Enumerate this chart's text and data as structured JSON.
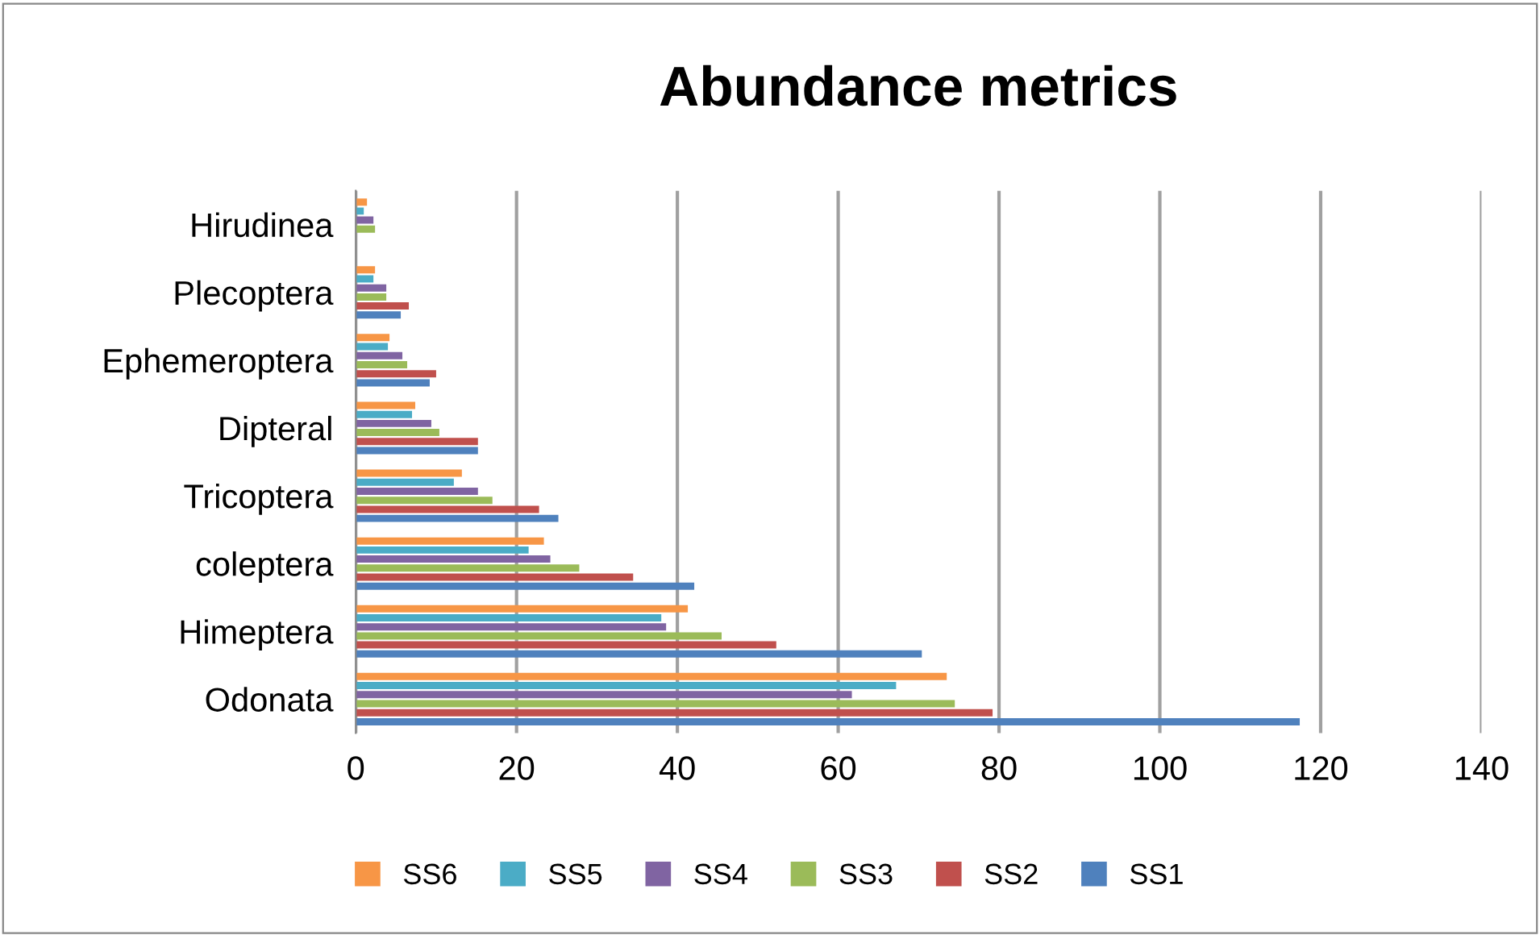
{
  "chart_data": {
    "type": "bar",
    "orientation": "horizontal",
    "title": "Abundance metrics",
    "categories": [
      "Hirudinea",
      "Plecoptera",
      "Ephemeroptera",
      "Dipteral",
      "Tricoptera",
      "coleptera",
      "Himeptera",
      "Odonata"
    ],
    "series": [
      {
        "name": "SS1",
        "color": "#4f81bd",
        "values": [
          0,
          5.6,
          9.2,
          15.2,
          25.2,
          42.1,
          70.4,
          117.4
        ]
      },
      {
        "name": "SS2",
        "color": "#c0504d",
        "values": [
          0,
          6.6,
          10,
          15.2,
          22.8,
          34.5,
          52.3,
          79.2
        ]
      },
      {
        "name": "SS3",
        "color": "#9bbb59",
        "values": [
          2.4,
          3.8,
          6.4,
          10.4,
          17,
          27.8,
          45.5,
          74.5
        ]
      },
      {
        "name": "SS4",
        "color": "#8064a2",
        "values": [
          2.2,
          3.8,
          5.8,
          9.4,
          15.2,
          24.2,
          38.6,
          61.7
        ]
      },
      {
        "name": "SS5",
        "color": "#4bacc6",
        "values": [
          1,
          2.2,
          4,
          7,
          12.2,
          21.5,
          38,
          67.2
        ]
      },
      {
        "name": "SS6",
        "color": "#f79646",
        "values": [
          1.4,
          2.4,
          4.2,
          7.4,
          13.2,
          23.4,
          41.3,
          73.5
        ]
      }
    ],
    "xlim": [
      0,
      140
    ],
    "xticks": [
      0,
      20,
      40,
      60,
      80,
      100,
      120,
      140
    ],
    "grid": "x",
    "legend": "bottom"
  }
}
